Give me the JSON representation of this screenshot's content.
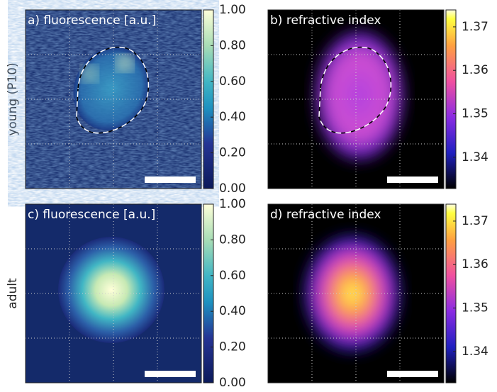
{
  "row_labels": [
    "young (P10)",
    "adult"
  ],
  "panels": [
    {
      "label": "a) fluorescence [a.u.]",
      "colorbar": {
        "lim": [
          0,
          1
        ],
        "ticks": [
          {
            "value": 0,
            "label": "0.00"
          },
          {
            "value": 0.2,
            "label": "0.20"
          },
          {
            "value": 0.4,
            "label": "0.40"
          },
          {
            "value": 0.6,
            "label": "0.60"
          },
          {
            "value": 0.8,
            "label": "0.80"
          },
          {
            "value": 1,
            "label": "1.00"
          }
        ]
      }
    },
    {
      "label": "b) refractive index",
      "colorbar": {
        "lim": [
          1.3328,
          1.3739
        ],
        "ticks": [
          1.34,
          1.35,
          1.36,
          1.37
        ]
      }
    },
    {
      "label": "c) fluorescence [a.u.]",
      "colorbar": {
        "lim": [
          0,
          1
        ],
        "ticks": [
          {
            "value": 0,
            "label": "0.00"
          },
          {
            "value": 0.2,
            "label": "0.20"
          },
          {
            "value": 0.4,
            "label": "0.40"
          },
          {
            "value": 0.6,
            "label": "0.60"
          },
          {
            "value": 0.8,
            "label": "0.80"
          },
          {
            "value": 1,
            "label": "1.00"
          }
        ]
      }
    },
    {
      "label": "d) refractive index",
      "colorbar": {
        "lim": [
          1.3328,
          1.3739
        ],
        "ticks": [
          1.34,
          1.35,
          1.36,
          1.37
        ]
      }
    }
  ]
}
